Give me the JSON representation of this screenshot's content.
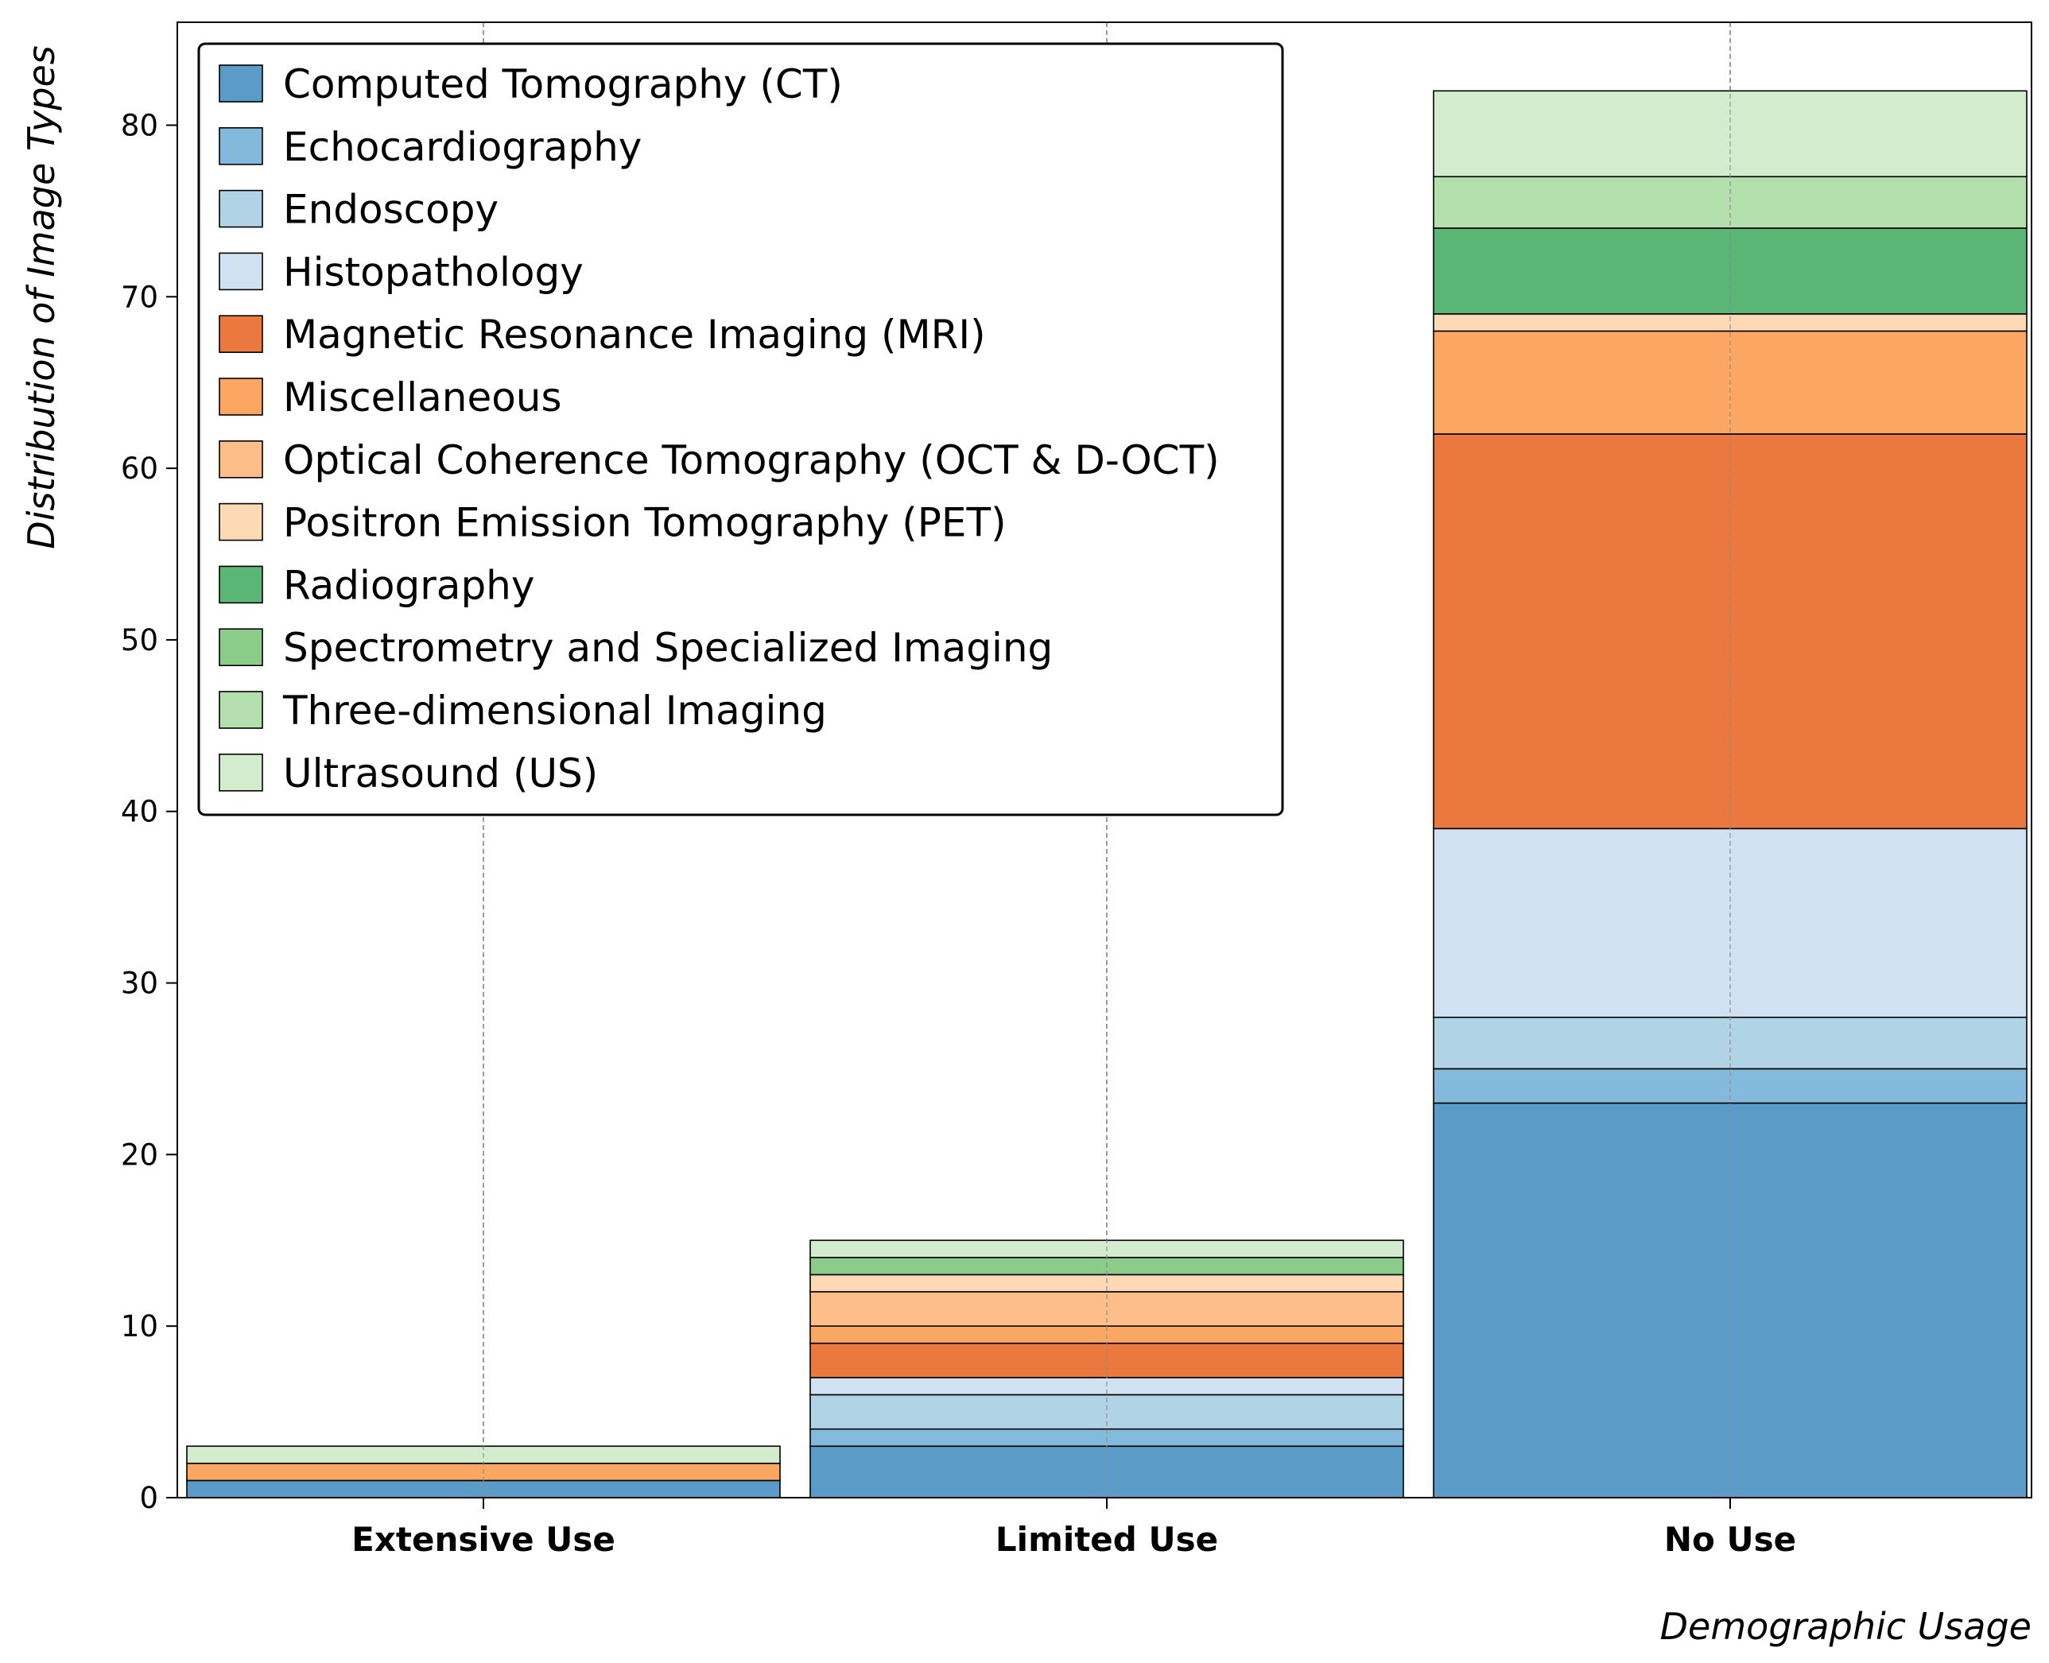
{
  "chart_data": {
    "type": "bar",
    "stacked": true,
    "title": "",
    "xlabel": "Demographic Usage",
    "ylabel": "Distribution of Image Types",
    "ylim": [
      0,
      86
    ],
    "yticks": [
      0,
      10,
      20,
      30,
      40,
      50,
      60,
      70,
      80
    ],
    "grid": "vertical-dashed",
    "legend_position": "top-left",
    "categories": [
      "Extensive Use",
      "Limited Use",
      "No Use"
    ],
    "series": [
      {
        "name": "Computed Tomography (CT)",
        "color": "#5b9bc8",
        "values": [
          1,
          3,
          23
        ]
      },
      {
        "name": "Echocardiography",
        "color": "#83badb",
        "values": [
          0,
          1,
          2
        ]
      },
      {
        "name": "Endoscopy",
        "color": "#b0d3e5",
        "values": [
          0,
          2,
          3
        ]
      },
      {
        "name": "Histopathology",
        "color": "#d0e2f1",
        "values": [
          0,
          1,
          11
        ]
      },
      {
        "name": "Magnetic Resonance Imaging (MRI)",
        "color": "#eb793f",
        "values": [
          0,
          2,
          23
        ]
      },
      {
        "name": "Miscellaneous",
        "color": "#fca663",
        "values": [
          1,
          1,
          6
        ]
      },
      {
        "name": "Optical Coherence Tomography (OCT & D-OCT)",
        "color": "#fdbe89",
        "values": [
          0,
          2,
          0
        ]
      },
      {
        "name": "Positron Emission Tomography (PET)",
        "color": "#fdd9b6",
        "values": [
          0,
          1,
          1
        ]
      },
      {
        "name": "Radiography",
        "color": "#5bb675",
        "values": [
          0,
          0,
          5
        ]
      },
      {
        "name": "Spectrometry and Specialized Imaging",
        "color": "#8ccc8a",
        "values": [
          0,
          1,
          0
        ]
      },
      {
        "name": "Three-dimensional Imaging",
        "color": "#b3dfac",
        "values": [
          0,
          0,
          3
        ]
      },
      {
        "name": "Ultrasound (US)",
        "color": "#d3eccd",
        "values": [
          1,
          1,
          5
        ]
      }
    ]
  }
}
